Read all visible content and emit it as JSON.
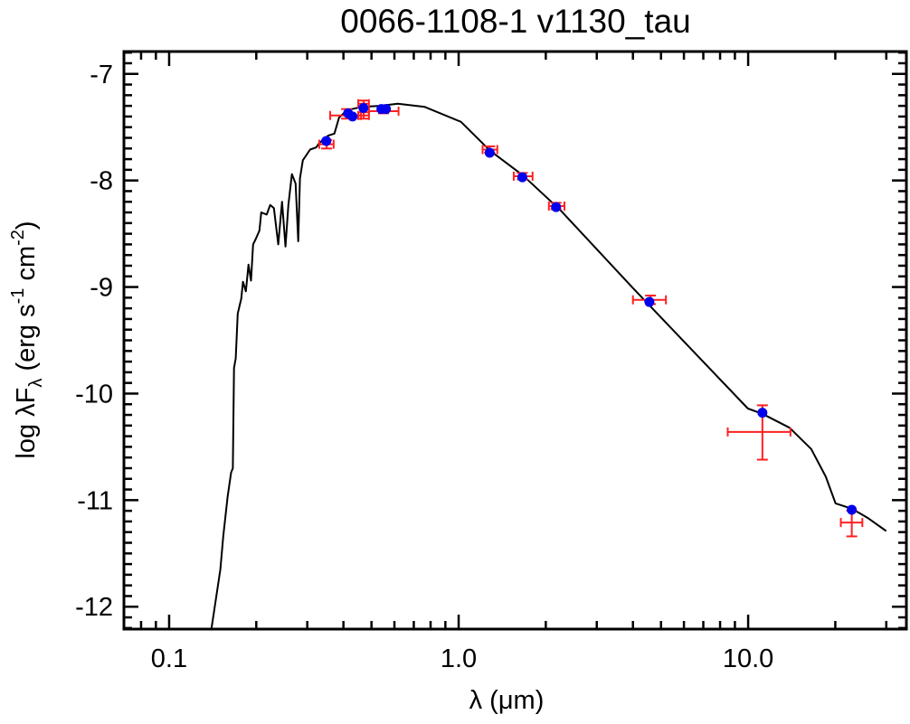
{
  "chart_data": {
    "type": "scatter",
    "title": "0066-1108-1   v1130_tau",
    "xlabel": "λ (μm)",
    "ylabel": {
      "prefix": "log λF",
      "sub": "λ",
      "mid1": " (erg s",
      "sup1": "-1",
      "mid2": " cm",
      "sup2": "-2",
      "end": ")"
    },
    "xscale": "log",
    "xlim": [
      0.0698,
      35.2
    ],
    "ylim": [
      -12.21,
      -6.79
    ],
    "x_ticks": [
      {
        "value": 0.1,
        "label": "0.1"
      },
      {
        "value": 1.0,
        "label": "1.0"
      },
      {
        "value": 10.0,
        "label": "10.0"
      }
    ],
    "y_ticks": [
      {
        "value": -7,
        "label": "-7"
      },
      {
        "value": -8,
        "label": "-8"
      },
      {
        "value": -9,
        "label": "-9"
      },
      {
        "value": -10,
        "label": "-10"
      },
      {
        "value": -11,
        "label": "-11"
      },
      {
        "value": -12,
        "label": "-12"
      }
    ],
    "grid": false,
    "colors": {
      "model": "#000000",
      "synthetic": "#0000ee",
      "observed": "#ff2020"
    },
    "model_spectrum": {
      "log_lambda": [
        -0.854,
        -0.823,
        -0.813,
        -0.798,
        -0.786,
        -0.78,
        -0.776,
        -0.77,
        -0.763,
        -0.751,
        -0.745,
        -0.735,
        -0.726,
        -0.717,
        -0.71,
        -0.701,
        -0.688,
        -0.682,
        -0.663,
        -0.651,
        -0.638,
        -0.623,
        -0.61,
        -0.598,
        -0.588,
        -0.576,
        -0.563,
        -0.554,
        -0.548,
        -0.538,
        -0.513,
        -0.492,
        -0.482,
        -0.451,
        -0.429,
        -0.413,
        -0.385,
        -0.335,
        -0.273,
        -0.21,
        -0.117,
        0.008,
        0.108,
        0.221,
        0.352,
        0.602,
        0.999,
        1.049,
        1.143,
        1.218,
        1.268,
        1.302,
        1.358,
        1.415,
        1.477
      ],
      "log_flux": [
        -12.21,
        -11.65,
        -11.34,
        -10.97,
        -10.74,
        -10.7,
        -9.76,
        -9.67,
        -9.25,
        -9.11,
        -8.95,
        -9.04,
        -8.79,
        -8.94,
        -8.6,
        -8.55,
        -8.47,
        -8.3,
        -8.32,
        -8.23,
        -8.26,
        -8.6,
        -8.2,
        -8.62,
        -8.23,
        -7.94,
        -8.03,
        -8.57,
        -7.98,
        -7.81,
        -7.71,
        -7.69,
        -7.65,
        -7.58,
        -7.56,
        -7.41,
        -7.34,
        -7.31,
        -7.3,
        -7.28,
        -7.31,
        -7.45,
        -7.72,
        -7.95,
        -8.28,
        -9.01,
        -10.14,
        -10.19,
        -10.32,
        -10.52,
        -10.78,
        -11.03,
        -11.08,
        -11.17,
        -11.29
      ]
    },
    "synthetic_photometry": [
      {
        "lambda": 0.349,
        "y": -7.63
      },
      {
        "lambda": 0.415,
        "y": -7.37
      },
      {
        "lambda": 0.43,
        "y": -7.4
      },
      {
        "lambda": 0.469,
        "y": -7.32
      },
      {
        "lambda": 0.541,
        "y": -7.33
      },
      {
        "lambda": 0.561,
        "y": -7.33
      },
      {
        "lambda": 1.28,
        "y": -7.74
      },
      {
        "lambda": 1.66,
        "y": -7.97
      },
      {
        "lambda": 2.17,
        "y": -8.25
      },
      {
        "lambda": 4.56,
        "y": -9.14
      },
      {
        "lambda": 11.2,
        "y": -10.18
      },
      {
        "lambda": 22.8,
        "y": -11.09
      }
    ],
    "observed": [
      {
        "lambda": 0.35,
        "y": -7.66,
        "xlo": 0.33,
        "xhi": 0.37,
        "ylo": -7.7,
        "yhi": -7.62
      },
      {
        "lambda": 0.41,
        "y": -7.39,
        "xlo": 0.36,
        "xhi": 0.46,
        "ylo": -7.42,
        "yhi": -7.33
      },
      {
        "lambda": 0.47,
        "y": -7.39,
        "xlo": 0.45,
        "xhi": 0.49,
        "ylo": -7.42,
        "yhi": -7.36
      },
      {
        "lambda": 0.47,
        "y": -7.28,
        "xlo": 0.45,
        "xhi": 0.49,
        "ylo": -7.31,
        "yhi": -7.25
      },
      {
        "lambda": 0.55,
        "y": -7.35,
        "xlo": 0.49,
        "xhi": 0.62,
        "ylo": -7.37,
        "yhi": -7.32
      },
      {
        "lambda": 1.28,
        "y": -7.71,
        "xlo": 1.21,
        "xhi": 1.36,
        "ylo": -7.74,
        "yhi": -7.68
      },
      {
        "lambda": 1.66,
        "y": -7.96,
        "xlo": 1.55,
        "xhi": 1.8,
        "ylo": -7.99,
        "yhi": -7.93
      },
      {
        "lambda": 2.17,
        "y": -8.24,
        "xlo": 2.05,
        "xhi": 2.32,
        "ylo": -8.27,
        "yhi": -8.21
      },
      {
        "lambda": 4.6,
        "y": -9.12,
        "xlo": 4.0,
        "xhi": 5.2,
        "ylo": -9.16,
        "yhi": -9.08
      },
      {
        "lambda": 11.2,
        "y": -10.36,
        "xlo": 8.5,
        "xhi": 14.0,
        "ylo": -10.62,
        "yhi": -10.11
      },
      {
        "lambda": 22.8,
        "y": -11.21,
        "xlo": 20.9,
        "xhi": 24.8,
        "ylo": -11.34,
        "yhi": -11.1
      }
    ]
  }
}
